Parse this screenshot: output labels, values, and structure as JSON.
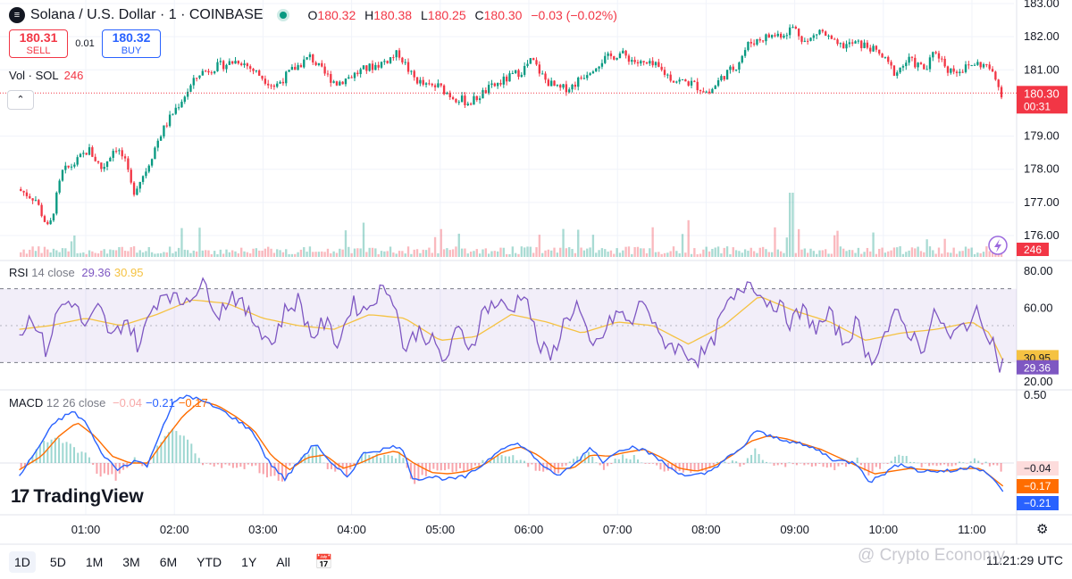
{
  "header": {
    "symbol_icon": "solana-icon",
    "title": "Solana / U.S. Dollar · 1 · COINBASE",
    "ohlc": [
      {
        "k": "O",
        "v": "180.32"
      },
      {
        "k": "H",
        "v": "180.38"
      },
      {
        "k": "L",
        "v": "180.25"
      },
      {
        "k": "C",
        "v": "180.30"
      }
    ],
    "change": "−0.03 (−0.02%)"
  },
  "trade": {
    "sell_price": "180.31",
    "sell_label": "SELL",
    "spread": "0.01",
    "buy_price": "180.32",
    "buy_label": "BUY"
  },
  "volume_legend": {
    "name": "Vol · SOL",
    "value": "246"
  },
  "rsi_legend": {
    "name": "RSI",
    "params": "14 close",
    "rsi": "29.36",
    "ma": "30.95"
  },
  "macd_legend": {
    "name": "MACD",
    "params": "12 26 close",
    "hist": "−0.04",
    "macd": "−0.21",
    "signal": "−0.17"
  },
  "colors": {
    "up": "#089981",
    "down": "#f23645",
    "rsi": "#7e57c2",
    "rsi_ma": "#f5c242",
    "macd": "#2962ff",
    "signal": "#ff6d00"
  },
  "toolbar": {
    "timeframes": [
      "1D",
      "5D",
      "1M",
      "3M",
      "6M",
      "YTD",
      "1Y",
      "All"
    ],
    "active": "1D",
    "clock": "11:21:29 UTC"
  },
  "logo": {
    "mark": "17",
    "text": "TradingView"
  },
  "watermark": "@ Crypto Economy",
  "chart_data": [
    {
      "type": "candlestick",
      "title": "Solana / U.S. Dollar · 1 · COINBASE",
      "ylim": [
        175.7,
        183
      ],
      "y_ticks": [
        "183.00",
        "182.00",
        "181.00",
        "179.00",
        "178.00",
        "177.00",
        "176.00"
      ],
      "x_ticks": [
        "01:00",
        "02:00",
        "03:00",
        "04:00",
        "05:00",
        "06:00",
        "07:00",
        "08:00",
        "09:00",
        "10:00",
        "11:00"
      ],
      "x_range_hours": [
        0.25,
        11.35
      ],
      "price_path": [
        [
          0.25,
          177.4
        ],
        [
          0.45,
          177.1
        ],
        [
          0.6,
          176.15
        ],
        [
          0.75,
          177.9
        ],
        [
          0.9,
          178.2
        ],
        [
          1.05,
          178.6
        ],
        [
          1.2,
          178.0
        ],
        [
          1.35,
          178.7
        ],
        [
          1.45,
          178.3
        ],
        [
          1.55,
          177.3
        ],
        [
          1.7,
          178.0
        ],
        [
          1.85,
          179.0
        ],
        [
          2.0,
          179.7
        ],
        [
          2.15,
          180.3
        ],
        [
          2.3,
          180.9
        ],
        [
          2.5,
          181.1
        ],
        [
          2.75,
          181.3
        ],
        [
          2.9,
          181.0
        ],
        [
          3.05,
          180.7
        ],
        [
          3.15,
          180.5
        ],
        [
          3.35,
          181.0
        ],
        [
          3.55,
          181.4
        ],
        [
          3.7,
          180.9
        ],
        [
          3.85,
          180.6
        ],
        [
          4.0,
          180.8
        ],
        [
          4.15,
          181.0
        ],
        [
          4.35,
          181.2
        ],
        [
          4.55,
          181.5
        ],
        [
          4.7,
          180.8
        ],
        [
          4.85,
          180.5
        ],
        [
          5.0,
          180.5
        ],
        [
          5.15,
          180.2
        ],
        [
          5.35,
          180.0
        ],
        [
          5.55,
          180.4
        ],
        [
          5.75,
          180.7
        ],
        [
          5.95,
          181.0
        ],
        [
          6.05,
          181.3
        ],
        [
          6.2,
          180.7
        ],
        [
          6.35,
          180.4
        ],
        [
          6.5,
          180.5
        ],
        [
          6.7,
          181.0
        ],
        [
          6.85,
          181.3
        ],
        [
          7.05,
          181.5
        ],
        [
          7.25,
          181.2
        ],
        [
          7.45,
          181.1
        ],
        [
          7.65,
          180.7
        ],
        [
          7.85,
          180.6
        ],
        [
          8.05,
          180.3
        ],
        [
          8.2,
          180.8
        ],
        [
          8.35,
          181.1
        ],
        [
          8.5,
          181.8
        ],
        [
          8.7,
          182.0
        ],
        [
          8.9,
          182.1
        ],
        [
          9.0,
          182.3
        ],
        [
          9.15,
          181.8
        ],
        [
          9.3,
          182.2
        ],
        [
          9.5,
          181.7
        ],
        [
          9.7,
          181.8
        ],
        [
          9.85,
          181.7
        ],
        [
          10.0,
          181.4
        ],
        [
          10.15,
          180.9
        ],
        [
          10.3,
          181.3
        ],
        [
          10.5,
          181.0
        ],
        [
          10.6,
          181.6
        ],
        [
          10.75,
          181.0
        ],
        [
          10.9,
          181.0
        ],
        [
          11.05,
          181.2
        ],
        [
          11.2,
          181.1
        ],
        [
          11.28,
          180.7
        ],
        [
          11.35,
          180.3
        ]
      ],
      "last_price": "180.30",
      "countdown": "00:31",
      "volume_last": "246"
    },
    {
      "type": "line",
      "name": "RSI 14 close",
      "ylim": [
        20,
        80
      ],
      "y_ticks": [
        "80.00",
        "60.00",
        "20.00"
      ],
      "bands": [
        70,
        30
      ],
      "last_rsi": "29.36",
      "last_ma": "30.95",
      "rsi_path": [
        [
          0.25,
          45
        ],
        [
          0.4,
          56
        ],
        [
          0.55,
          36
        ],
        [
          0.7,
          60
        ],
        [
          0.85,
          64
        ],
        [
          1.0,
          48
        ],
        [
          1.15,
          60
        ],
        [
          1.3,
          42
        ],
        [
          1.45,
          55
        ],
        [
          1.6,
          38
        ],
        [
          1.75,
          60
        ],
        [
          1.9,
          70
        ],
        [
          2.05,
          62
        ],
        [
          2.2,
          68
        ],
        [
          2.35,
          72
        ],
        [
          2.5,
          56
        ],
        [
          2.65,
          68
        ],
        [
          2.8,
          58
        ],
        [
          2.95,
          50
        ],
        [
          3.1,
          40
        ],
        [
          3.25,
          58
        ],
        [
          3.4,
          64
        ],
        [
          3.55,
          44
        ],
        [
          3.7,
          52
        ],
        [
          3.85,
          40
        ],
        [
          4.0,
          62
        ],
        [
          4.15,
          58
        ],
        [
          4.3,
          68
        ],
        [
          4.45,
          70
        ],
        [
          4.6,
          36
        ],
        [
          4.75,
          48
        ],
        [
          4.9,
          42
        ],
        [
          5.05,
          30
        ],
        [
          5.2,
          48
        ],
        [
          5.35,
          38
        ],
        [
          5.5,
          60
        ],
        [
          5.65,
          62
        ],
        [
          5.8,
          58
        ],
        [
          5.95,
          70
        ],
        [
          6.1,
          40
        ],
        [
          6.25,
          32
        ],
        [
          6.4,
          52
        ],
        [
          6.55,
          62
        ],
        [
          6.7,
          36
        ],
        [
          6.85,
          46
        ],
        [
          7.0,
          58
        ],
        [
          7.15,
          50
        ],
        [
          7.3,
          66
        ],
        [
          7.45,
          44
        ],
        [
          7.6,
          40
        ],
        [
          7.75,
          36
        ],
        [
          7.9,
          32
        ],
        [
          8.05,
          38
        ],
        [
          8.2,
          58
        ],
        [
          8.35,
          66
        ],
        [
          8.5,
          76
        ],
        [
          8.65,
          64
        ],
        [
          8.8,
          62
        ],
        [
          8.95,
          52
        ],
        [
          9.1,
          58
        ],
        [
          9.25,
          48
        ],
        [
          9.4,
          56
        ],
        [
          9.55,
          40
        ],
        [
          9.7,
          52
        ],
        [
          9.85,
          30
        ],
        [
          10.0,
          44
        ],
        [
          10.15,
          56
        ],
        [
          10.3,
          46
        ],
        [
          10.45,
          38
        ],
        [
          10.6,
          58
        ],
        [
          10.75,
          42
        ],
        [
          10.9,
          50
        ],
        [
          11.05,
          56
        ],
        [
          11.15,
          50
        ],
        [
          11.25,
          40
        ],
        [
          11.3,
          28
        ],
        [
          11.35,
          30
        ]
      ],
      "ma_path": [
        [
          0.25,
          48
        ],
        [
          0.6,
          50
        ],
        [
          1.0,
          54
        ],
        [
          1.4,
          50
        ],
        [
          1.8,
          56
        ],
        [
          2.2,
          64
        ],
        [
          2.6,
          62
        ],
        [
          3.0,
          54
        ],
        [
          3.4,
          50
        ],
        [
          3.8,
          48
        ],
        [
          4.2,
          56
        ],
        [
          4.6,
          54
        ],
        [
          5.0,
          42
        ],
        [
          5.4,
          44
        ],
        [
          5.8,
          56
        ],
        [
          6.2,
          52
        ],
        [
          6.6,
          46
        ],
        [
          7.0,
          52
        ],
        [
          7.4,
          50
        ],
        [
          7.8,
          40
        ],
        [
          8.2,
          50
        ],
        [
          8.6,
          66
        ],
        [
          9.0,
          58
        ],
        [
          9.4,
          52
        ],
        [
          9.8,
          42
        ],
        [
          10.2,
          46
        ],
        [
          10.6,
          48
        ],
        [
          11.0,
          52
        ],
        [
          11.2,
          46
        ],
        [
          11.35,
          31
        ]
      ]
    },
    {
      "type": "line",
      "name": "MACD 12 26 close",
      "ylim": [
        -0.3,
        0.5
      ],
      "y_ticks": [
        "0.50"
      ],
      "last_hist": "−0.04",
      "last_macd": "−0.21",
      "last_signal": "−0.17",
      "macd_path": [
        [
          0.25,
          -0.1
        ],
        [
          0.45,
          0.1
        ],
        [
          0.65,
          0.3
        ],
        [
          0.85,
          0.38
        ],
        [
          1.0,
          0.3
        ],
        [
          1.15,
          0.1
        ],
        [
          1.35,
          -0.05
        ],
        [
          1.55,
          0.02
        ],
        [
          1.7,
          -0.02
        ],
        [
          1.85,
          0.25
        ],
        [
          2.0,
          0.45
        ],
        [
          2.15,
          0.5
        ],
        [
          2.3,
          0.46
        ],
        [
          2.5,
          0.4
        ],
        [
          2.7,
          0.32
        ],
        [
          2.9,
          0.22
        ],
        [
          3.05,
          0.02
        ],
        [
          3.25,
          -0.12
        ],
        [
          3.45,
          0.05
        ],
        [
          3.6,
          0.15
        ],
        [
          3.75,
          0.0
        ],
        [
          3.95,
          -0.1
        ],
        [
          4.15,
          0.08
        ],
        [
          4.35,
          0.1
        ],
        [
          4.55,
          0.13
        ],
        [
          4.7,
          -0.12
        ],
        [
          4.9,
          -0.1
        ],
        [
          5.1,
          -0.12
        ],
        [
          5.3,
          -0.1
        ],
        [
          5.5,
          0.0
        ],
        [
          5.7,
          0.12
        ],
        [
          5.9,
          0.14
        ],
        [
          6.1,
          0.02
        ],
        [
          6.3,
          -0.1
        ],
        [
          6.5,
          -0.02
        ],
        [
          6.7,
          0.12
        ],
        [
          6.85,
          0.0
        ],
        [
          7.0,
          0.1
        ],
        [
          7.2,
          0.12
        ],
        [
          7.4,
          0.06
        ],
        [
          7.6,
          -0.04
        ],
        [
          7.8,
          -0.1
        ],
        [
          8.0,
          -0.08
        ],
        [
          8.2,
          0.02
        ],
        [
          8.4,
          0.1
        ],
        [
          8.55,
          0.24
        ],
        [
          8.7,
          0.2
        ],
        [
          8.9,
          0.17
        ],
        [
          9.05,
          0.14
        ],
        [
          9.25,
          0.1
        ],
        [
          9.45,
          0.02
        ],
        [
          9.7,
          0.0
        ],
        [
          9.85,
          -0.14
        ],
        [
          10.0,
          -0.08
        ],
        [
          10.2,
          0.0
        ],
        [
          10.4,
          -0.06
        ],
        [
          10.6,
          -0.06
        ],
        [
          10.8,
          -0.06
        ],
        [
          11.0,
          -0.02
        ],
        [
          11.15,
          -0.06
        ],
        [
          11.35,
          -0.21
        ]
      ],
      "signal_path": [
        [
          0.25,
          -0.05
        ],
        [
          0.5,
          0.05
        ],
        [
          0.7,
          0.2
        ],
        [
          0.9,
          0.3
        ],
        [
          1.1,
          0.2
        ],
        [
          1.3,
          0.05
        ],
        [
          1.5,
          0.0
        ],
        [
          1.7,
          0.0
        ],
        [
          1.9,
          0.18
        ],
        [
          2.1,
          0.35
        ],
        [
          2.3,
          0.46
        ],
        [
          2.5,
          0.42
        ],
        [
          2.7,
          0.34
        ],
        [
          2.9,
          0.24
        ],
        [
          3.1,
          0.05
        ],
        [
          3.3,
          -0.05
        ],
        [
          3.5,
          0.04
        ],
        [
          3.7,
          0.06
        ],
        [
          3.9,
          -0.04
        ],
        [
          4.1,
          0.0
        ],
        [
          4.3,
          0.06
        ],
        [
          4.5,
          0.09
        ],
        [
          4.7,
          0.0
        ],
        [
          4.9,
          -0.07
        ],
        [
          5.1,
          -0.08
        ],
        [
          5.3,
          -0.06
        ],
        [
          5.5,
          -0.01
        ],
        [
          5.7,
          0.08
        ],
        [
          5.9,
          0.12
        ],
        [
          6.1,
          0.06
        ],
        [
          6.3,
          -0.04
        ],
        [
          6.5,
          -0.04
        ],
        [
          6.7,
          0.06
        ],
        [
          6.9,
          0.05
        ],
        [
          7.1,
          0.08
        ],
        [
          7.3,
          0.1
        ],
        [
          7.5,
          0.04
        ],
        [
          7.7,
          -0.04
        ],
        [
          7.9,
          -0.06
        ],
        [
          8.1,
          -0.02
        ],
        [
          8.3,
          0.06
        ],
        [
          8.5,
          0.16
        ],
        [
          8.7,
          0.2
        ],
        [
          8.9,
          0.18
        ],
        [
          9.1,
          0.14
        ],
        [
          9.3,
          0.1
        ],
        [
          9.5,
          0.04
        ],
        [
          9.7,
          -0.02
        ],
        [
          9.9,
          -0.08
        ],
        [
          10.1,
          -0.06
        ],
        [
          10.3,
          -0.04
        ],
        [
          10.5,
          -0.05
        ],
        [
          10.7,
          -0.06
        ],
        [
          10.9,
          -0.04
        ],
        [
          11.1,
          -0.04
        ],
        [
          11.35,
          -0.17
        ]
      ]
    }
  ]
}
